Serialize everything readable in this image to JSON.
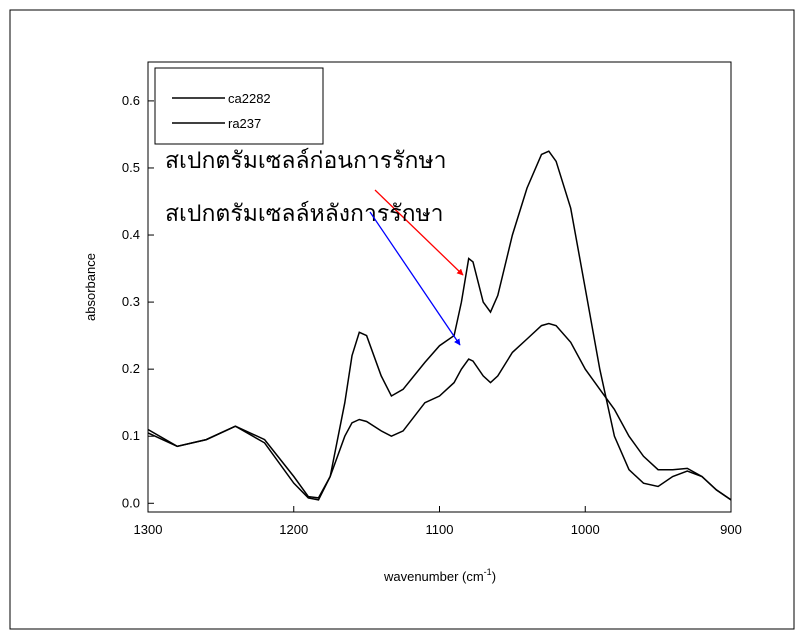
{
  "chart_data": {
    "type": "line",
    "y_label": "absorbance",
    "x_label": [
      "wavenumber (cm",
      "-1",
      ")"
    ],
    "x": [
      1300,
      1280,
      1260,
      1240,
      1220,
      1200,
      1190,
      1183,
      1175,
      1165,
      1160,
      1155,
      1150,
      1140,
      1133,
      1125,
      1110,
      1100,
      1090,
      1085,
      1080,
      1077,
      1070,
      1065,
      1060,
      1050,
      1040,
      1030,
      1025,
      1020,
      1010,
      1000,
      990,
      980,
      970,
      960,
      950,
      940,
      930,
      920,
      910,
      900
    ],
    "series": [
      {
        "name": "ca2282",
        "color": "#000000",
        "values": [
          0.105,
          0.085,
          0.095,
          0.115,
          0.09,
          0.03,
          0.008,
          0.005,
          0.04,
          0.15,
          0.22,
          0.255,
          0.25,
          0.19,
          0.16,
          0.17,
          0.21,
          0.235,
          0.25,
          0.3,
          0.365,
          0.36,
          0.3,
          0.285,
          0.31,
          0.4,
          0.47,
          0.52,
          0.525,
          0.51,
          0.44,
          0.32,
          0.2,
          0.1,
          0.05,
          0.03,
          0.025,
          0.04,
          0.048,
          0.04,
          0.02,
          0.005
        ]
      },
      {
        "name": "ra237",
        "color": "#000000",
        "values": [
          0.11,
          0.085,
          0.095,
          0.115,
          0.095,
          0.04,
          0.01,
          0.008,
          0.04,
          0.1,
          0.12,
          0.125,
          0.122,
          0.108,
          0.1,
          0.108,
          0.15,
          0.16,
          0.18,
          0.2,
          0.215,
          0.212,
          0.19,
          0.18,
          0.19,
          0.225,
          0.245,
          0.265,
          0.268,
          0.265,
          0.24,
          0.2,
          0.17,
          0.14,
          0.1,
          0.07,
          0.05,
          0.05,
          0.052,
          0.04,
          0.02,
          0.005
        ]
      }
    ],
    "xlim": [
      1300,
      900
    ],
    "xticks": [
      1300,
      1200,
      1100,
      1000,
      900
    ],
    "ylim": [
      -0.013,
      0.658
    ],
    "yticks": [
      {
        "value": 0,
        "label": "0.0"
      },
      0.1,
      0.2,
      0.3,
      0.4,
      0.5,
      0.6
    ],
    "legend": "top-left",
    "annotations": [
      {
        "text": "สเปกตรัมเซลล์ก่อนการรักษา",
        "color": "#ff0000"
      },
      {
        "text": "สเปกตรัมเซลล์หลังการรักษา",
        "color": "#0000ff"
      }
    ]
  }
}
